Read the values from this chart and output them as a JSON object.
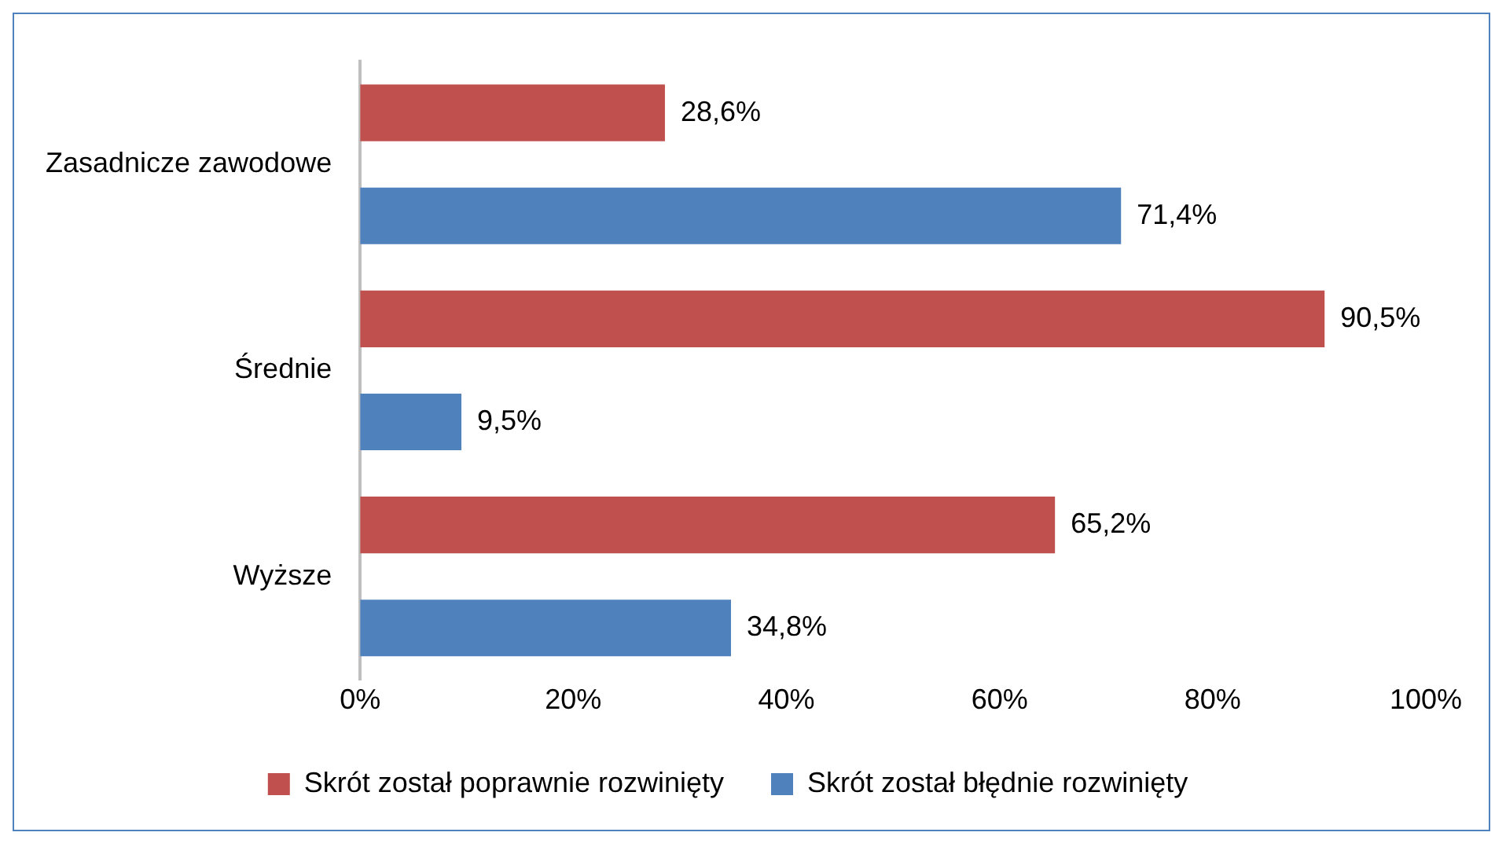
{
  "chart_data": {
    "type": "bar",
    "orientation": "horizontal",
    "categories": [
      "Zasadnicze zawodowe",
      "Średnie",
      "Wyższe"
    ],
    "series": [
      {
        "name": "Skrót został poprawnie rozwinięty",
        "color": "#c0504d",
        "values": [
          28.6,
          90.5,
          65.2
        ],
        "value_labels": [
          "28,6%",
          "90,5%",
          "65,2%"
        ]
      },
      {
        "name": "Skrót został błędnie rozwinięty",
        "color": "#4f81bd",
        "values": [
          71.4,
          9.5,
          34.8
        ],
        "value_labels": [
          "71,4%",
          "9,5%",
          "34,8%"
        ]
      }
    ],
    "xlim": [
      0,
      100
    ],
    "xticks": [
      {
        "value": 0,
        "label": "0%"
      },
      {
        "value": 20,
        "label": "20%"
      },
      {
        "value": 40,
        "label": "40%"
      },
      {
        "value": 60,
        "label": "60%"
      },
      {
        "value": 80,
        "label": "80%"
      },
      {
        "value": 100,
        "label": "100%"
      }
    ],
    "grid": false,
    "legend": "bottom"
  }
}
